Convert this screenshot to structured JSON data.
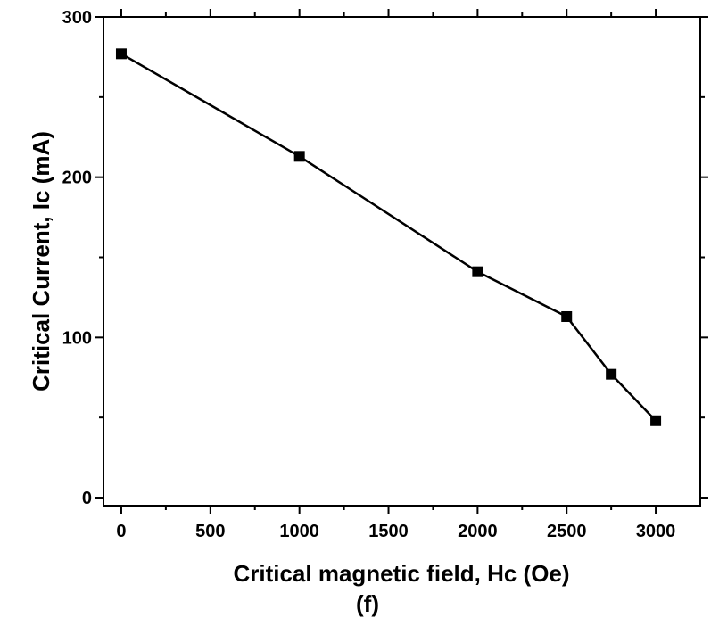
{
  "chart_data": {
    "type": "line",
    "title": "",
    "xlabel": "Critical magnetic field, Hc (Oe)",
    "ylabel": "Critical Current, Ic (mA)",
    "panel_label": "(f)",
    "xlim": [
      -100,
      3250
    ],
    "ylim": [
      -5,
      300
    ],
    "x_major_ticks": [
      0,
      500,
      1000,
      1500,
      2000,
      2500,
      3000
    ],
    "x_minor_ticks": [
      250,
      750,
      1250,
      1750,
      2250,
      2750
    ],
    "y_major_ticks": [
      0,
      100,
      200,
      300
    ],
    "y_minor_ticks": [
      50,
      150,
      250
    ],
    "grid": false,
    "marker": "square",
    "colors": {
      "series": "#000000"
    },
    "series": [
      {
        "x": [
          0,
          1000,
          2000,
          2500,
          2750,
          3000
        ],
        "y": [
          277,
          213,
          141,
          113,
          77,
          48
        ]
      }
    ]
  }
}
